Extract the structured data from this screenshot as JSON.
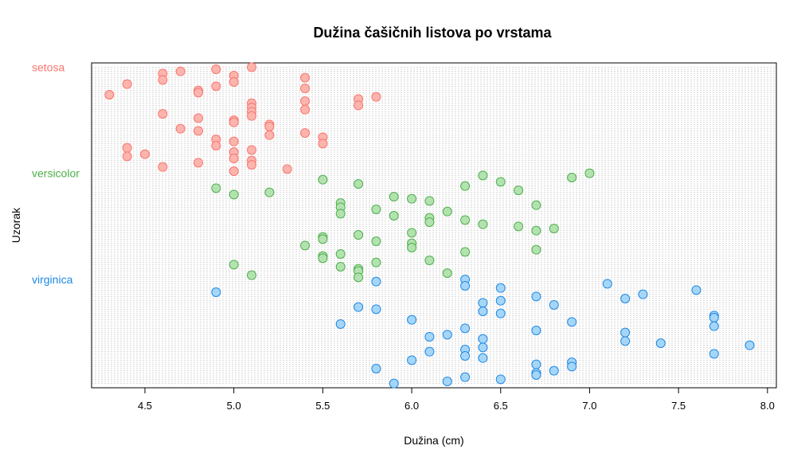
{
  "chart_data": {
    "type": "scatter",
    "title": "Dužina čašičnih listova po vrstama",
    "xlabel": "Dužina (cm)",
    "ylabel": "Uzorak",
    "xlim": [
      4.2,
      8.05
    ],
    "x_ticks": [
      "4.5",
      "5.0",
      "5.5",
      "6.0",
      "6.5",
      "7.0",
      "7.5",
      "8.0"
    ],
    "grid": true,
    "series": [
      {
        "name": "setosa",
        "color": "#f8766d",
        "fill": "#fbb4ae",
        "values": [
          5.1,
          4.9,
          4.7,
          4.6,
          5.0,
          5.4,
          4.6,
          5.0,
          4.4,
          4.9,
          5.4,
          4.8,
          4.8,
          4.3,
          5.8,
          5.7,
          5.4,
          5.1,
          5.7,
          5.1,
          5.4,
          5.1,
          4.6,
          5.1,
          4.8,
          5.0,
          5.0,
          5.2,
          5.2,
          4.7,
          4.8,
          5.4,
          5.2,
          5.5,
          4.9,
          5.0,
          5.5,
          4.9,
          4.4,
          5.1,
          5.0,
          4.5,
          4.4,
          5.0,
          5.1,
          4.8,
          5.1,
          4.6,
          5.3,
          5.0
        ]
      },
      {
        "name": "versicolor",
        "color": "#4daf4a",
        "fill": "#b3e2b0",
        "values": [
          7.0,
          6.4,
          6.9,
          5.5,
          6.5,
          5.7,
          6.3,
          4.9,
          6.6,
          5.2,
          5.0,
          5.9,
          6.0,
          6.1,
          5.6,
          6.7,
          5.6,
          5.8,
          6.2,
          5.6,
          5.9,
          6.1,
          6.3,
          6.1,
          6.4,
          6.6,
          6.8,
          6.7,
          6.0,
          5.7,
          5.5,
          5.5,
          5.8,
          6.0,
          5.4,
          6.0,
          6.7,
          6.3,
          5.6,
          5.5,
          5.5,
          6.1,
          5.8,
          5.0,
          5.6,
          5.7,
          5.7,
          6.2,
          5.1,
          5.7
        ]
      },
      {
        "name": "virginica",
        "color": "#1e88e5",
        "fill": "#a6d6f7",
        "values": [
          6.3,
          5.8,
          7.1,
          6.3,
          6.5,
          7.6,
          4.9,
          7.3,
          6.7,
          7.2,
          6.5,
          6.4,
          6.8,
          5.7,
          5.8,
          6.4,
          6.5,
          7.7,
          7.7,
          6.0,
          6.9,
          5.6,
          7.7,
          6.3,
          6.7,
          7.2,
          6.2,
          6.1,
          6.4,
          7.2,
          7.4,
          7.9,
          6.4,
          6.3,
          6.1,
          7.7,
          6.3,
          6.4,
          6.0,
          6.9,
          6.7,
          6.9,
          5.8,
          6.8,
          6.7,
          6.7,
          6.3,
          6.5,
          6.2,
          5.9
        ]
      }
    ]
  }
}
